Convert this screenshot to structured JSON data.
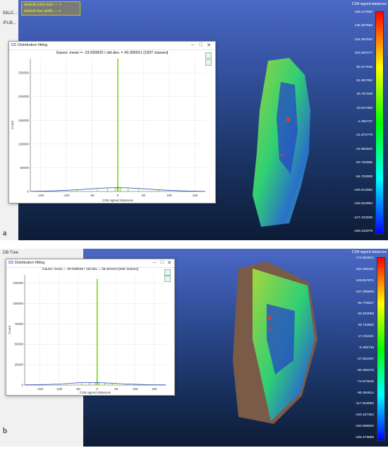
{
  "panels": [
    {
      "label": "a",
      "sidebar_items": [
        "58LiC...",
        "/PUB..."
      ],
      "legend_items": [
        "default point size  —  +",
        "default line width  —  +"
      ],
      "dialog": {
        "window_title": "Distribution fitting",
        "chart_title": "Gauss: mean = -19.093920 / std.dev. = 43.390911 [1937 classes]"
      },
      "scalar_bar": {
        "title": "C2M signed distances",
        "labels": [
          "166.217606",
          "145.307563",
          "124.397520",
          "103.487477",
          "82.577435",
          "61.667392",
          "40.757349",
          "19.847306",
          "-1.062737",
          "-21.972779",
          "-42.882822",
          "-63.792865",
          "-84.702908",
          "-105.612950",
          "-126.522993",
          "-147.433036",
          "-168.343079"
        ]
      },
      "chart_data": {
        "type": "bar",
        "xlabel": "C2M signed distances",
        "ylabel": "Count",
        "x_ticks": [
          -150,
          -100,
          -50,
          0,
          50,
          100,
          150
        ],
        "y_ticks": [
          0,
          50000,
          100000,
          150000,
          200000,
          250000
        ],
        "xlim": [
          -170,
          170
        ],
        "ylim": [
          0,
          280000
        ],
        "series": [
          {
            "x": [
              -170,
              -120,
              -80,
              -40,
              -20,
              -5,
              -1,
              0,
              1,
              5,
              20,
              40,
              80,
              120,
              170
            ],
            "values": [
              500,
              1500,
              3000,
              5000,
              6000,
              7000,
              9000,
              280000,
              9000,
              7000,
              6000,
              5000,
              3000,
              1500,
              500
            ]
          }
        ],
        "fit_curve": {
          "x": [
            -170,
            -120,
            -80,
            -50,
            -20,
            0,
            20,
            50,
            80,
            120,
            170
          ],
          "values": [
            300,
            1500,
            3500,
            5800,
            7600,
            8000,
            7600,
            5800,
            3500,
            1500,
            300
          ]
        }
      }
    },
    {
      "label": "b",
      "sidebar_header": "DB Tree",
      "dialog": {
        "window_title": "Distribution fitting",
        "chart_title": "Gauss: mean = -30.835846 / std.dev. = 46.304410 [936 classes]"
      },
      "scalar_bar": {
        "title": "C2M signed distances",
        "labels": [
          "174.984913",
          "152.326194",
          "129.817671",
          "107.296606",
          "84.775537",
          "62.254068",
          "39.732800",
          "17.211531",
          "-5.309738",
          "-27.831007",
          "-50.352276",
          "-72.873545",
          "-95.394814",
          "-117.916083",
          "-140.437353",
          "-162.958620",
          "-185.479889"
        ]
      },
      "chart_data": {
        "type": "bar",
        "xlabel": "C2M signed distances",
        "ylabel": "Count",
        "x_ticks": [
          -150,
          -100,
          -50,
          0,
          50,
          100,
          150
        ],
        "y_ticks": [
          0,
          25000,
          50000,
          75000,
          100000,
          125000
        ],
        "xlim": [
          -190,
          180
        ],
        "ylim": [
          0,
          135000
        ],
        "series": [
          {
            "x": [
              -190,
              -120,
              -80,
              -40,
              -20,
              -5,
              -1,
              0,
              1,
              5,
              20,
              40,
              80,
              120,
              180
            ],
            "values": [
              300,
              800,
              1500,
              2500,
              3000,
              3500,
              4500,
              130000,
              4500,
              3500,
              3000,
              2500,
              1500,
              800,
              300
            ]
          }
        ],
        "fit_curve": {
          "x": [
            -190,
            -120,
            -80,
            -50,
            -30,
            0,
            30,
            60,
            100,
            140,
            180
          ],
          "values": [
            200,
            900,
            1900,
            2800,
            3200,
            3000,
            2500,
            1800,
            1000,
            500,
            200
          ]
        }
      }
    }
  ]
}
